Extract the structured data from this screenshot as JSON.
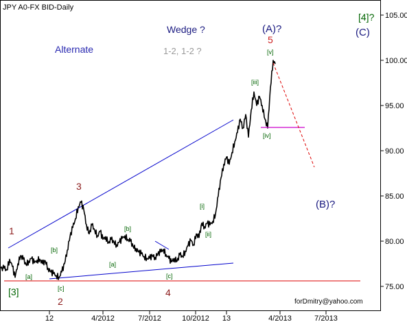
{
  "chart_data": {
    "type": "line",
    "title": "JPY A0-FX BID-Daily",
    "footer": "forDmitry@yahoo.com",
    "ylim": [
      74,
      106
    ],
    "y_ticks": [
      75.0,
      80.0,
      85.0,
      90.0,
      95.0,
      100.0,
      105.0
    ],
    "y_tick_labels": [
      "75.00",
      "80.00",
      "85.00",
      "90.00",
      "95.00",
      "100.00",
      "105.00"
    ],
    "x_tick_labels": [
      "12",
      "4/2012",
      "7/2012",
      "10/2012",
      "13",
      "4/2013",
      "7/2013"
    ],
    "x_domain": [
      0,
      593
    ],
    "x_ticks": [
      72,
      150,
      218,
      285,
      330,
      408,
      475
    ],
    "grid": false,
    "colors": {
      "price": "#000000",
      "channel": "#0000cc",
      "support": "#dd0000",
      "target_path": "#dd0000",
      "level_marker": "#cc00cc",
      "wave_major": "#8b1a1a",
      "wave_minor": "#006400",
      "wave_alt": "#1a1a80",
      "question": "#999999"
    },
    "series": [
      {
        "values": [
          [
            1,
            77.0
          ],
          [
            6,
            77.0
          ],
          [
            10,
            76.8
          ],
          [
            14,
            78.0
          ],
          [
            18,
            77.2
          ],
          [
            22,
            76.0
          ],
          [
            26,
            77.5
          ],
          [
            30,
            78.4
          ],
          [
            34,
            78.0
          ],
          [
            38,
            77.4
          ],
          [
            42,
            77.8
          ],
          [
            46,
            78.1
          ],
          [
            50,
            77.6
          ],
          [
            54,
            77.9
          ],
          [
            58,
            78.0
          ],
          [
            62,
            77.5
          ],
          [
            66,
            77.8
          ],
          [
            70,
            77.0
          ],
          [
            74,
            76.6
          ],
          [
            78,
            76.4
          ],
          [
            82,
            76.2
          ],
          [
            86,
            76.0
          ],
          [
            90,
            76.6
          ],
          [
            94,
            77.5
          ],
          [
            98,
            79.0
          ],
          [
            102,
            80.5
          ],
          [
            106,
            81.5
          ],
          [
            110,
            82.5
          ],
          [
            114,
            83.8
          ],
          [
            118,
            84.3
          ],
          [
            122,
            83.5
          ],
          [
            126,
            81.8
          ],
          [
            130,
            80.8
          ],
          [
            134,
            81.8
          ],
          [
            138,
            81.2
          ],
          [
            142,
            80.6
          ],
          [
            146,
            81.1
          ],
          [
            150,
            80.2
          ],
          [
            154,
            80.5
          ],
          [
            158,
            79.8
          ],
          [
            162,
            80.2
          ],
          [
            166,
            79.9
          ],
          [
            170,
            79.6
          ],
          [
            174,
            79.9
          ],
          [
            178,
            80.3
          ],
          [
            182,
            80.6
          ],
          [
            186,
            80.2
          ],
          [
            190,
            80.0
          ],
          [
            194,
            79.4
          ],
          [
            198,
            79.2
          ],
          [
            202,
            78.8
          ],
          [
            206,
            78.6
          ],
          [
            210,
            78.3
          ],
          [
            214,
            78.1
          ],
          [
            218,
            78.1
          ],
          [
            222,
            78.4
          ],
          [
            226,
            78.2
          ],
          [
            230,
            78.6
          ],
          [
            234,
            78.8
          ],
          [
            238,
            79.1
          ],
          [
            242,
            78.5
          ],
          [
            246,
            78.1
          ],
          [
            250,
            77.7
          ],
          [
            254,
            78.1
          ],
          [
            258,
            77.8
          ],
          [
            262,
            78.5
          ],
          [
            266,
            78.3
          ],
          [
            270,
            78.9
          ],
          [
            274,
            79.5
          ],
          [
            278,
            80.1
          ],
          [
            282,
            79.6
          ],
          [
            286,
            80.8
          ],
          [
            290,
            80.4
          ],
          [
            294,
            82.0
          ],
          [
            298,
            81.6
          ],
          [
            302,
            82.0
          ],
          [
            306,
            81.8
          ],
          [
            310,
            82.2
          ],
          [
            314,
            83.0
          ],
          [
            318,
            85.0
          ],
          [
            322,
            87.0
          ],
          [
            326,
            88.5
          ],
          [
            330,
            89.3
          ],
          [
            334,
            88.5
          ],
          [
            338,
            89.8
          ],
          [
            342,
            91.0
          ],
          [
            346,
            92.0
          ],
          [
            350,
            93.5
          ],
          [
            354,
            92.5
          ],
          [
            358,
            94.0
          ],
          [
            362,
            91.5
          ],
          [
            366,
            94.5
          ],
          [
            370,
            96.5
          ],
          [
            374,
            95.0
          ],
          [
            378,
            96.0
          ],
          [
            382,
            95.0
          ],
          [
            386,
            93.5
          ],
          [
            390,
            92.5
          ],
          [
            394,
            97.0
          ],
          [
            398,
            100.0
          ],
          [
            401,
            99.6
          ]
        ]
      }
    ],
    "annotations": {
      "wedge": "Wedge ?",
      "alternate": "Alternate",
      "alt_count": "1-2, 1-2 ?",
      "major_waves": [
        "1",
        "2",
        "3",
        "4",
        "5"
      ],
      "waves_abc_primary": [
        "(A)?",
        "(B)?",
        "(C)"
      ],
      "degree_labels": [
        "[3]",
        "[4]?"
      ],
      "minor_waves": [
        "[a]",
        "[b]",
        "[c]",
        "[a]",
        "[b]",
        "[c]",
        "[i]",
        "[ii]",
        "[iii]",
        "[iv]",
        "[v]"
      ]
    }
  }
}
